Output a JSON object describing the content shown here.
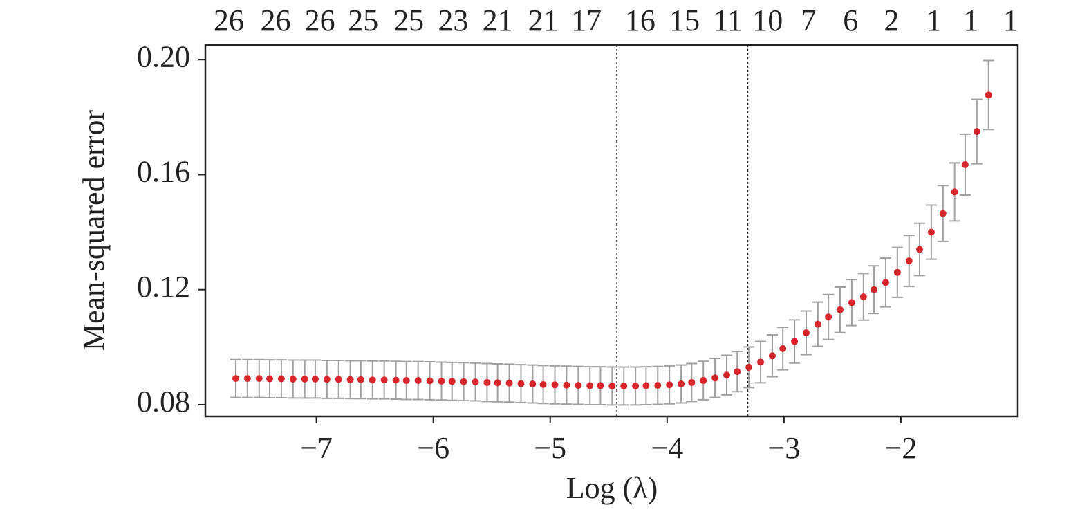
{
  "chart_data": {
    "type": "errorbar",
    "x_label": "Log (λ)",
    "y_label": "Mean-squared error",
    "xlim": [
      -7.95,
      -1.0
    ],
    "ylim": [
      0.0759,
      0.2051
    ],
    "xticks": [
      {
        "value": -7,
        "label": "−7"
      },
      {
        "value": -6,
        "label": "−6"
      },
      {
        "value": -5,
        "label": "−5"
      },
      {
        "value": -4,
        "label": "−4"
      },
      {
        "value": -3,
        "label": "−3"
      },
      {
        "value": -2,
        "label": "−2"
      }
    ],
    "yticks": [
      0.08,
      0.12,
      0.16,
      {
        "value": 0.2,
        "label": "0.20"
      }
    ],
    "top_ticks": [
      {
        "value": -7.75,
        "label": "26"
      },
      {
        "value": -7.35,
        "label": "26"
      },
      {
        "value": -6.97,
        "label": "26"
      },
      {
        "value": -6.6,
        "label": "25"
      },
      {
        "value": -6.21,
        "label": "25"
      },
      {
        "value": -5.83,
        "label": "23"
      },
      {
        "value": -5.45,
        "label": "21"
      },
      {
        "value": -5.06,
        "label": "21"
      },
      {
        "value": -4.69,
        "label": "17"
      },
      {
        "value": -4.23,
        "label": "16"
      },
      {
        "value": -3.85,
        "label": "15"
      },
      {
        "value": -3.48,
        "label": "11"
      },
      {
        "value": -3.14,
        "label": "10"
      },
      {
        "value": -2.79,
        "label": "7"
      },
      {
        "value": -2.43,
        "label": "6"
      },
      {
        "value": -2.08,
        "label": "2"
      },
      {
        "value": -1.72,
        "label": "1"
      },
      {
        "value": -1.4,
        "label": "1"
      },
      {
        "value": -1.06,
        "label": "1"
      }
    ],
    "vlines": [
      -4.43,
      -3.31
    ],
    "color": "#d7262b",
    "error_color": "#a0a0a0",
    "x": [
      -7.69,
      -7.59,
      -7.49,
      -7.4,
      -7.3,
      -7.2,
      -7.1,
      -7.01,
      -6.91,
      -6.81,
      -6.71,
      -6.62,
      -6.52,
      -6.42,
      -6.32,
      -6.23,
      -6.13,
      -6.03,
      -5.93,
      -5.84,
      -5.74,
      -5.64,
      -5.54,
      -5.45,
      -5.35,
      -5.25,
      -5.15,
      -5.06,
      -4.96,
      -4.86,
      -4.76,
      -4.66,
      -4.57,
      -4.47,
      -4.37,
      -4.27,
      -4.18,
      -4.08,
      -3.98,
      -3.88,
      -3.79,
      -3.69,
      -3.59,
      -3.49,
      -3.4,
      -3.3,
      -3.2,
      -3.1,
      -3.01,
      -2.91,
      -2.81,
      -2.71,
      -2.62,
      -2.52,
      -2.42,
      -2.32,
      -2.23,
      -2.13,
      -2.03,
      -1.93,
      -1.84,
      -1.74,
      -1.64,
      -1.54,
      -1.45,
      -1.35,
      -1.25
    ],
    "values": [
      0.0891,
      0.0891,
      0.0891,
      0.089,
      0.089,
      0.0889,
      0.0889,
      0.0889,
      0.0888,
      0.0888,
      0.0887,
      0.0887,
      0.0886,
      0.0886,
      0.0885,
      0.0884,
      0.0884,
      0.0883,
      0.0882,
      0.0881,
      0.088,
      0.0879,
      0.0877,
      0.0876,
      0.0875,
      0.0873,
      0.0872,
      0.087,
      0.0869,
      0.0868,
      0.0867,
      0.0866,
      0.0866,
      0.0865,
      0.0865,
      0.0865,
      0.0866,
      0.0867,
      0.0869,
      0.0872,
      0.0877,
      0.0884,
      0.0893,
      0.0903,
      0.0915,
      0.093,
      0.0948,
      0.097,
      0.0995,
      0.102,
      0.105,
      0.108,
      0.1105,
      0.113,
      0.1155,
      0.1175,
      0.12,
      0.1225,
      0.126,
      0.13,
      0.134,
      0.14,
      0.1465,
      0.154,
      0.1635,
      0.175,
      0.1877
    ],
    "errors": [
      0.0066,
      0.0066,
      0.0066,
      0.0066,
      0.0066,
      0.0066,
      0.0066,
      0.0066,
      0.0066,
      0.0066,
      0.0066,
      0.0066,
      0.0066,
      0.0066,
      0.0066,
      0.0066,
      0.0066,
      0.0066,
      0.0066,
      0.0066,
      0.0066,
      0.0066,
      0.0066,
      0.0066,
      0.0066,
      0.0066,
      0.0066,
      0.0066,
      0.0066,
      0.0066,
      0.0066,
      0.0066,
      0.0066,
      0.0066,
      0.0066,
      0.0066,
      0.0066,
      0.0066,
      0.0066,
      0.0066,
      0.0066,
      0.0067,
      0.0068,
      0.0069,
      0.007,
      0.0071,
      0.0072,
      0.0073,
      0.0074,
      0.0075,
      0.0076,
      0.0077,
      0.0078,
      0.0079,
      0.008,
      0.0081,
      0.0083,
      0.0085,
      0.0087,
      0.0089,
      0.0091,
      0.0094,
      0.0097,
      0.0101,
      0.0106,
      0.0112,
      0.012
    ]
  }
}
